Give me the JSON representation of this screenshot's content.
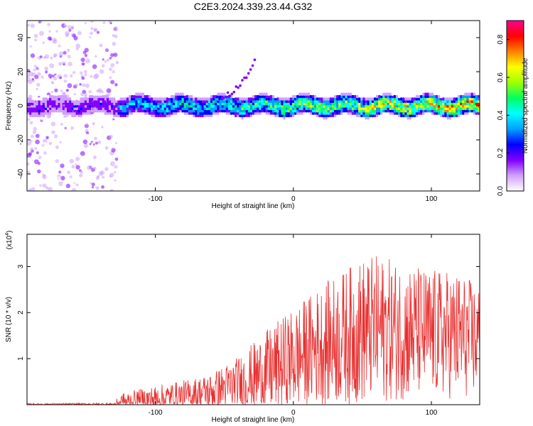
{
  "figure_title": "C2E3.2024.339.23.44.G32",
  "chart_data": [
    {
      "type": "heatmap",
      "title": "C2E3.2024.339.23.44.G32",
      "xlabel": "Height of straight line (km)",
      "ylabel": "Frequency (Hz)",
      "xlim": [
        -193,
        135
      ],
      "ylim": [
        -50,
        50
      ],
      "xticks": [
        -100,
        0,
        100
      ],
      "yticks": [
        -40,
        -20,
        0,
        20,
        40
      ],
      "xtick_labels": [
        "-100",
        "0",
        "100"
      ],
      "ytick_labels": [
        "-40",
        "-20",
        "0",
        "20",
        "40"
      ],
      "colorbar": {
        "label": "Normalized spectral amplitude",
        "range": [
          0,
          0.9
        ],
        "ticks": [
          0.0,
          0.2,
          0.4,
          0.6,
          0.8
        ],
        "tick_labels": [
          "0.0",
          "0.2",
          "0.4",
          "0.6",
          "0.8"
        ],
        "colormap": [
          "#ffffff",
          "#d0a0ff",
          "#8000ff",
          "#0000ff",
          "#00a0ff",
          "#00ffff",
          "#00ff60",
          "#a0ff00",
          "#ffff00",
          "#ff8000",
          "#ff0000",
          "#ff0090"
        ]
      },
      "signal": {
        "center_frequency_hz": 0,
        "band_halfwidth_hz": 6,
        "noisy_region_x": [
          -193,
          -128
        ],
        "upward_streak": {
          "x": [
            -55,
            -28
          ],
          "y": [
            5,
            26
          ]
        }
      }
    },
    {
      "type": "line",
      "xlabel": "Height of straight line (km)",
      "ylabel": "SNR (10 * v/v)",
      "y_multiplier_label": "(x10",
      "y_multiplier_exp": "4",
      "y_multiplier_close": ")",
      "xlim": [
        -193,
        135
      ],
      "ylim": [
        0,
        3.7
      ],
      "xticks": [
        -100,
        0,
        100
      ],
      "yticks": [
        1,
        2,
        3
      ],
      "xtick_labels": [
        "-100",
        "0",
        "100"
      ],
      "ytick_labels": [
        "1",
        "2",
        "3"
      ],
      "line_color": "#e83030",
      "envelope": {
        "x": [
          -193,
          -130,
          -125,
          -100,
          -80,
          -60,
          -40,
          -20,
          0,
          20,
          40,
          50,
          60,
          80,
          100,
          120,
          135
        ],
        "mean": [
          0.01,
          0.01,
          0.05,
          0.12,
          0.18,
          0.28,
          0.45,
          0.7,
          1.0,
          1.3,
          1.5,
          1.6,
          1.65,
          1.6,
          1.55,
          1.5,
          1.4
        ],
        "amp": [
          0.02,
          0.03,
          0.2,
          0.3,
          0.35,
          0.4,
          0.6,
          0.9,
          1.1,
          1.3,
          1.5,
          1.6,
          1.6,
          1.5,
          1.4,
          1.4,
          1.2
        ]
      }
    }
  ]
}
